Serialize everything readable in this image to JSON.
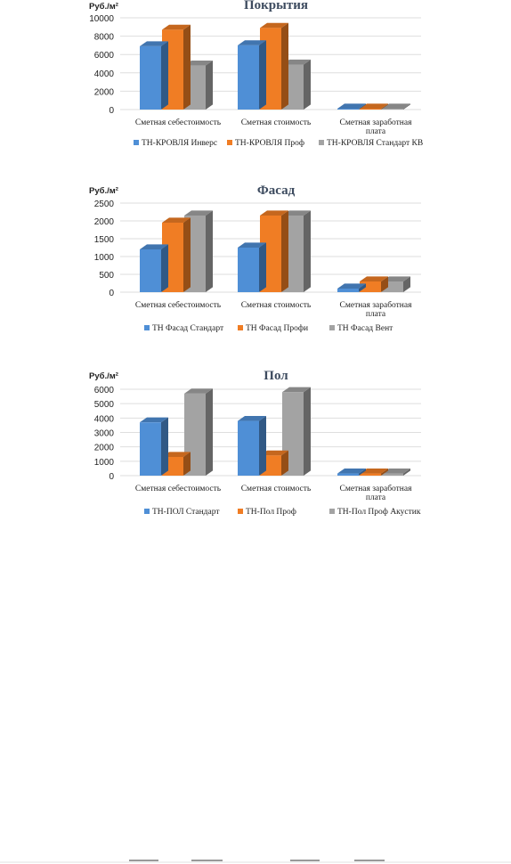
{
  "chart_data": [
    {
      "type": "bar",
      "title": "Покрытия",
      "unit_label": "Руб./м²",
      "ylim": [
        0,
        10000
      ],
      "yticks": [
        0,
        2000,
        4000,
        6000,
        8000,
        10000
      ],
      "categories": [
        "Сметная себестоимость",
        "Сметная стоимость",
        "Сметная заработная плата"
      ],
      "series": [
        {
          "name": "ТН-КРОВЛЯ Инверс",
          "color": "#4f8fd6",
          "values": [
            6900,
            7000,
            100
          ]
        },
        {
          "name": "ТН-КРОВЛЯ  Проф",
          "color": "#f07d24",
          "values": [
            8700,
            8900,
            100
          ]
        },
        {
          "name": "ТН-КРОВЛЯ Стандарт КВ",
          "color": "#a3a3a3",
          "values": [
            4800,
            4900,
            100
          ]
        }
      ],
      "grid": true,
      "legend": "bottom"
    },
    {
      "type": "bar",
      "title": "Фасад",
      "unit_label": "Руб./м²",
      "ylim": [
        0,
        2500
      ],
      "yticks": [
        0,
        500,
        1000,
        1500,
        2000,
        2500
      ],
      "categories": [
        "Сметная себестоимость",
        "Сметная стоимость",
        "Сметная заработная плата"
      ],
      "series": [
        {
          "name": "ТН Фасад Стандарт",
          "color": "#4f8fd6",
          "values": [
            1200,
            1250,
            100
          ]
        },
        {
          "name": "ТН Фасад Профи",
          "color": "#f07d24",
          "values": [
            1950,
            2150,
            300
          ]
        },
        {
          "name": "ТН Фасад Вент",
          "color": "#a3a3a3",
          "values": [
            2150,
            2150,
            300
          ]
        }
      ],
      "grid": true,
      "legend": "bottom"
    },
    {
      "type": "bar",
      "title": "Пол",
      "unit_label": "Руб./м²",
      "ylim": [
        0,
        6000
      ],
      "yticks": [
        0,
        1000,
        2000,
        3000,
        4000,
        5000,
        6000
      ],
      "categories": [
        "Сметная себестоимость",
        "Сметная стоимость",
        "Сметная заработная плата"
      ],
      "series": [
        {
          "name": "ТН-ПОЛ  Стандарт",
          "color": "#4f8fd6",
          "values": [
            3700,
            3800,
            150
          ]
        },
        {
          "name": "ТН-Пол Проф",
          "color": "#f07d24",
          "values": [
            1300,
            1400,
            150
          ]
        },
        {
          "name": "ТН-Пол Проф Акустик",
          "color": "#a3a3a3",
          "values": [
            5700,
            5800,
            150
          ]
        }
      ],
      "grid": true,
      "legend": "bottom"
    }
  ]
}
